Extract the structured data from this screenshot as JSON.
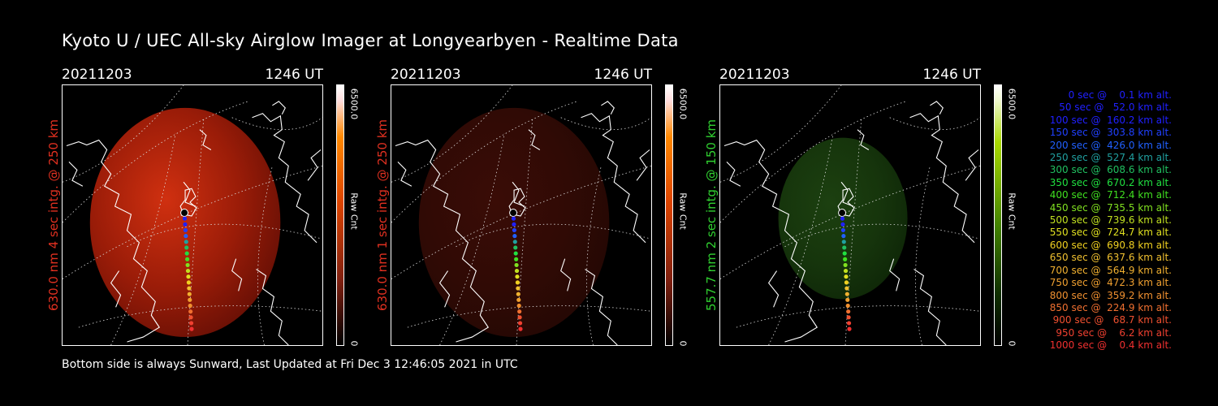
{
  "title": "Kyoto U / UEC All-sky Airglow Imager at Longyearbyen - Realtime Data",
  "footer": "Bottom side is always Sunward, Last Updated at Fri Dec  3 12:46:05 2021 in UTC",
  "colors": {
    "red_label": "#e03020",
    "green_label": "#30d030"
  },
  "panels": [
    {
      "date": "20211203",
      "time": "1246 UT",
      "ylabel": "630.0 nm  4 sec intg. @ 250 km",
      "colorbar_max": "6500.0",
      "colorbar_min": "0",
      "colorbar_label": "Raw Cnt",
      "tone": "red-bright"
    },
    {
      "date": "20211203",
      "time": "1246 UT",
      "ylabel": "630.0 nm  1 sec intg. @ 250 km",
      "colorbar_max": "6500.0",
      "colorbar_min": "0",
      "colorbar_label": "Raw Cnt",
      "tone": "red-dim"
    },
    {
      "date": "20211203",
      "time": "1246 UT",
      "ylabel": "557.7 nm  2 sec intg. @ 150 km",
      "colorbar_max": "6500.0",
      "colorbar_min": "0",
      "colorbar_label": "Raw Cnt",
      "tone": "green"
    }
  ],
  "legend": [
    {
      "text": "   0 sec @    0.1 km alt.",
      "color": "#2020ff"
    },
    {
      "text": "  50 sec @   52.0 km alt.",
      "color": "#2020ff"
    },
    {
      "text": " 100 sec @  160.2 km alt.",
      "color": "#2020ff"
    },
    {
      "text": " 150 sec @  303.8 km alt.",
      "color": "#2040ff"
    },
    {
      "text": " 200 sec @  426.0 km alt.",
      "color": "#2060ff"
    },
    {
      "text": " 250 sec @  527.4 km alt.",
      "color": "#20a0a0"
    },
    {
      "text": " 300 sec @  608.6 km alt.",
      "color": "#20c060"
    },
    {
      "text": " 350 sec @  670.2 km alt.",
      "color": "#20e040"
    },
    {
      "text": " 400 sec @  712.4 km alt.",
      "color": "#40e020"
    },
    {
      "text": " 450 sec @  735.5 km alt.",
      "color": "#80e020"
    },
    {
      "text": " 500 sec @  739.6 km alt.",
      "color": "#c0e020"
    },
    {
      "text": " 550 sec @  724.7 km alt.",
      "color": "#e0e020"
    },
    {
      "text": " 600 sec @  690.8 km alt.",
      "color": "#f0d020"
    },
    {
      "text": " 650 sec @  637.6 km alt.",
      "color": "#f0c030"
    },
    {
      "text": " 700 sec @  564.9 km alt.",
      "color": "#f0b030"
    },
    {
      "text": " 750 sec @  472.3 km alt.",
      "color": "#f0a030"
    },
    {
      "text": " 800 sec @  359.2 km alt.",
      "color": "#f09030"
    },
    {
      "text": " 850 sec @  224.9 km alt.",
      "color": "#f07030"
    },
    {
      "text": " 900 sec @   68.7 km alt.",
      "color": "#f05030"
    },
    {
      "text": " 950 sec @    6.2 km alt.",
      "color": "#f04030"
    },
    {
      "text": "1000 sec @    0.4 km alt.",
      "color": "#f03030"
    }
  ]
}
